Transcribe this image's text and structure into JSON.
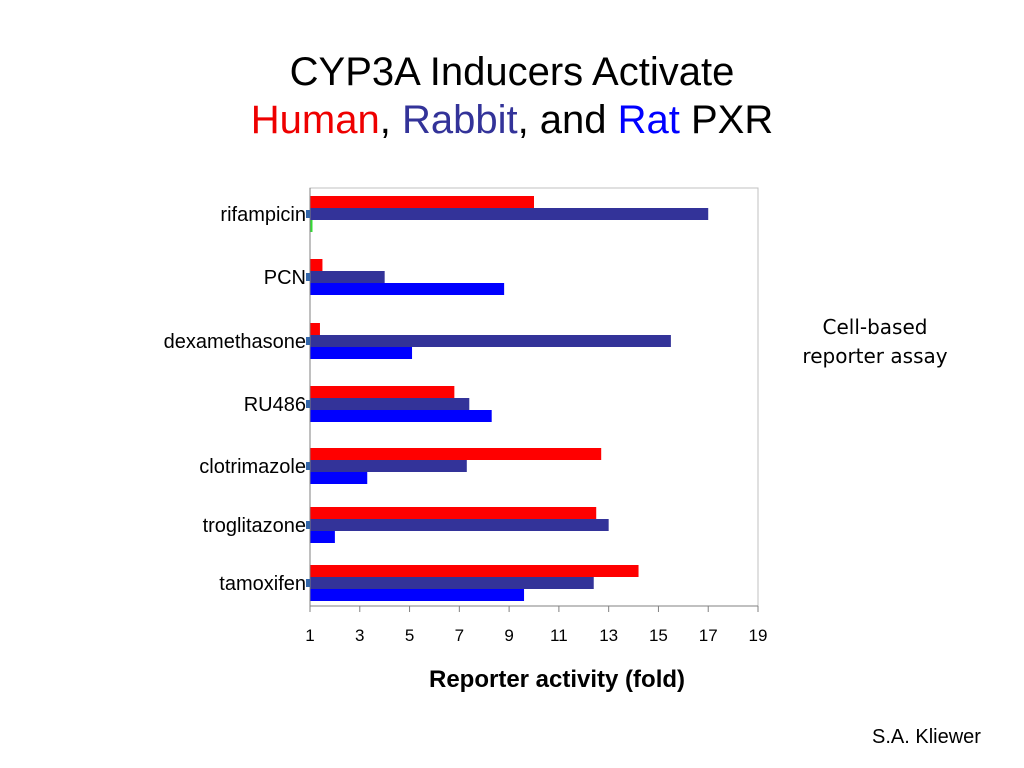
{
  "title": {
    "line1": "CYP3A Inducers Activate",
    "line2": {
      "human": "Human",
      "sep1": ", ",
      "rabbit": "Rabbit",
      "sep2": ", and ",
      "rat": "Rat",
      "tail": " PXR"
    }
  },
  "colors": {
    "human": "#ff0000",
    "rabbit": "#333399",
    "rat": "#0000ff",
    "rat_rifampicin": "#33dd33",
    "title_human": "#ee0000",
    "title_rabbit": "#333399",
    "title_rat": "#0000ff"
  },
  "chart_data": {
    "type": "bar",
    "orientation": "horizontal",
    "categories": [
      "rifampicin",
      "PCN",
      "dexamethasone",
      "RU486",
      "clotrimazole",
      "troglitazone",
      "tamoxifen"
    ],
    "series": [
      {
        "key": "human",
        "values": [
          10.0,
          1.5,
          1.4,
          6.8,
          12.7,
          12.5,
          14.2
        ]
      },
      {
        "key": "rabbit",
        "values": [
          17.0,
          4.0,
          15.5,
          7.4,
          7.3,
          13.0,
          12.4
        ]
      },
      {
        "key": "rat",
        "values": [
          1.1,
          8.8,
          5.1,
          8.3,
          3.3,
          2.0,
          9.6
        ]
      }
    ],
    "xlabel": "Reporter activity (fold)",
    "xlim": [
      1,
      19
    ],
    "xticks": [
      "1",
      "3",
      "5",
      "7",
      "9",
      "11",
      "13",
      "15",
      "17",
      "19"
    ],
    "grid": false,
    "legend": "none"
  },
  "note": {
    "line1": "Cell-based",
    "line2": "reporter assay"
  },
  "credit": "S.A. Kliewer"
}
